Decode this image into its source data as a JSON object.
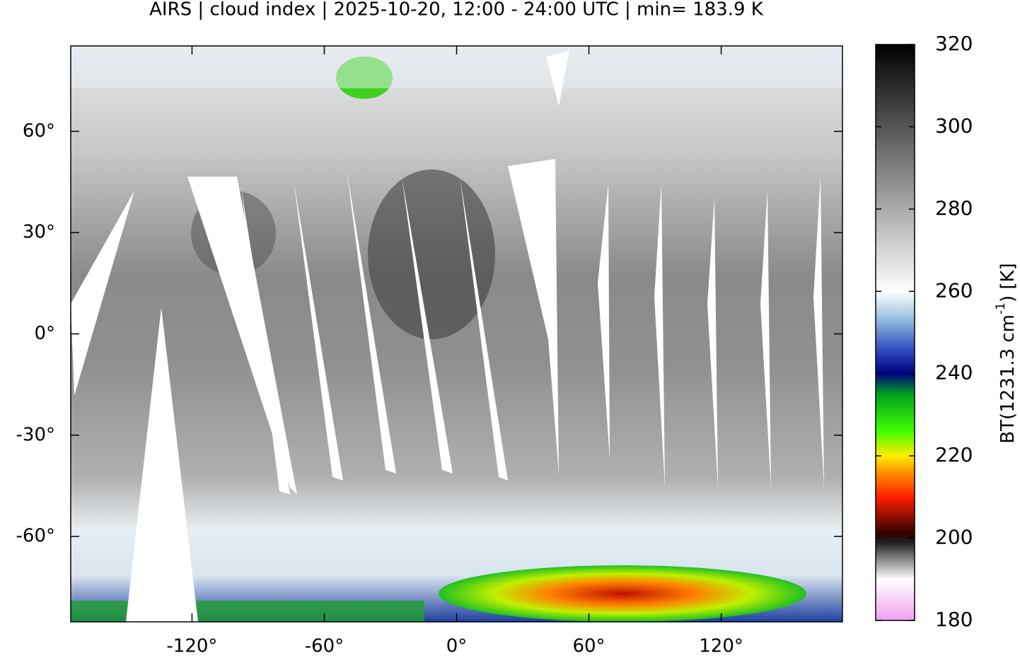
{
  "title": "AIRS | cloud index | 2025-10-20, 12:00 - 24:00 UTC | min= 183.9 K",
  "map": {
    "xlim": [
      -175,
      175
    ],
    "ylim": [
      -85.3,
      85.3
    ],
    "xticks": [
      {
        "value": -120,
        "label": "-120°"
      },
      {
        "value": -60,
        "label": "-60°"
      },
      {
        "value": 0,
        "label": "0°"
      },
      {
        "value": 60,
        "label": "60°"
      },
      {
        "value": 120,
        "label": "120°"
      }
    ],
    "yticks": [
      {
        "value": 60,
        "label": "60°"
      },
      {
        "value": 30,
        "label": "30°"
      },
      {
        "value": 0,
        "label": "0°"
      },
      {
        "value": -30,
        "label": "-30°"
      },
      {
        "value": -60,
        "label": "-60°"
      }
    ]
  },
  "colorbar": {
    "lim": [
      180,
      320
    ],
    "ticks": [
      180,
      200,
      220,
      240,
      260,
      280,
      300,
      320
    ],
    "label": [
      "BT(1231.3 cm",
      "-1",
      ") [K]"
    ],
    "colors": [
      {
        "value": 180,
        "color": "#f0a0f0"
      },
      {
        "value": 190,
        "color": "#ffffff"
      },
      {
        "value": 199,
        "color": "#202020"
      },
      {
        "value": 201,
        "color": "#300000"
      },
      {
        "value": 210,
        "color": "#ff2000"
      },
      {
        "value": 216,
        "color": "#ff9000"
      },
      {
        "value": 220,
        "color": "#ffee00"
      },
      {
        "value": 226,
        "color": "#40ff00"
      },
      {
        "value": 235,
        "color": "#00a020"
      },
      {
        "value": 240,
        "color": "#000080"
      },
      {
        "value": 246,
        "color": "#3050c0"
      },
      {
        "value": 254,
        "color": "#a0c8e0"
      },
      {
        "value": 260,
        "color": "#ffffff"
      },
      {
        "value": 290,
        "color": "#808080"
      },
      {
        "value": 320,
        "color": "#000000"
      }
    ]
  }
}
